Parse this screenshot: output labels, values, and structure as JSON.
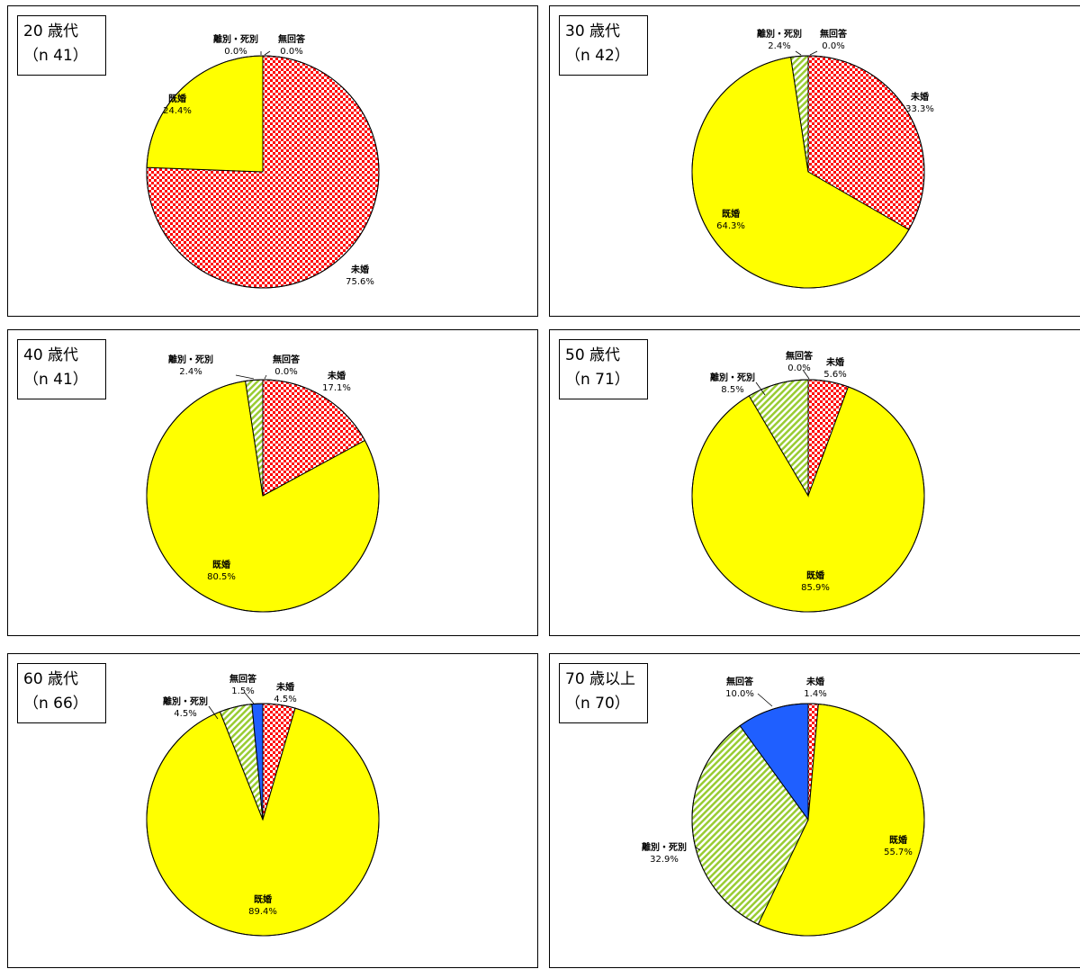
{
  "colors": {
    "未婚": "#ff0000",
    "既婚": "#ffff00",
    "離別・死別": "#99cc33",
    "無回答": "#1f5fff"
  },
  "chart_data": [
    {
      "type": "pie",
      "title": "20 歳代",
      "subtitle": "（n 41）",
      "categories": [
        "未婚",
        "既婚",
        "離別・死別",
        "無回答"
      ],
      "values": [
        75.6,
        24.4,
        0.0,
        0.0
      ],
      "value_labels": [
        "75.6%",
        "24.4%",
        "0.0%",
        "0.0%"
      ]
    },
    {
      "type": "pie",
      "title": "30 歳代",
      "subtitle": "（n 42）",
      "categories": [
        "未婚",
        "既婚",
        "離別・死別",
        "無回答"
      ],
      "values": [
        33.3,
        64.3,
        2.4,
        0.0
      ],
      "value_labels": [
        "33.3%",
        "64.3%",
        "2.4%",
        "0.0%"
      ]
    },
    {
      "type": "pie",
      "title": "40 歳代",
      "subtitle": "（n 41）",
      "categories": [
        "未婚",
        "既婚",
        "離別・死別",
        "無回答"
      ],
      "values": [
        17.1,
        80.5,
        2.4,
        0.0
      ],
      "value_labels": [
        "17.1%",
        "80.5%",
        "2.4%",
        "0.0%"
      ]
    },
    {
      "type": "pie",
      "title": "50 歳代",
      "subtitle": "（n 71）",
      "categories": [
        "未婚",
        "既婚",
        "離別・死別",
        "無回答"
      ],
      "values": [
        5.6,
        85.9,
        8.5,
        0.0
      ],
      "value_labels": [
        "5.6%",
        "85.9%",
        "8.5%",
        "0.0%"
      ]
    },
    {
      "type": "pie",
      "title": "60 歳代",
      "subtitle": "（n 66）",
      "categories": [
        "未婚",
        "既婚",
        "離別・死別",
        "無回答"
      ],
      "values": [
        4.5,
        89.4,
        4.5,
        1.5
      ],
      "value_labels": [
        "4.5%",
        "89.4%",
        "4.5%",
        "1.5%"
      ]
    },
    {
      "type": "pie",
      "title": "70 歳以上",
      "subtitle": "（n 70）",
      "categories": [
        "未婚",
        "既婚",
        "離別・死別",
        "無回答"
      ],
      "values": [
        1.4,
        55.7,
        32.9,
        10.0
      ],
      "value_labels": [
        "1.4%",
        "55.7%",
        "32.9%",
        "10.0%"
      ]
    }
  ]
}
